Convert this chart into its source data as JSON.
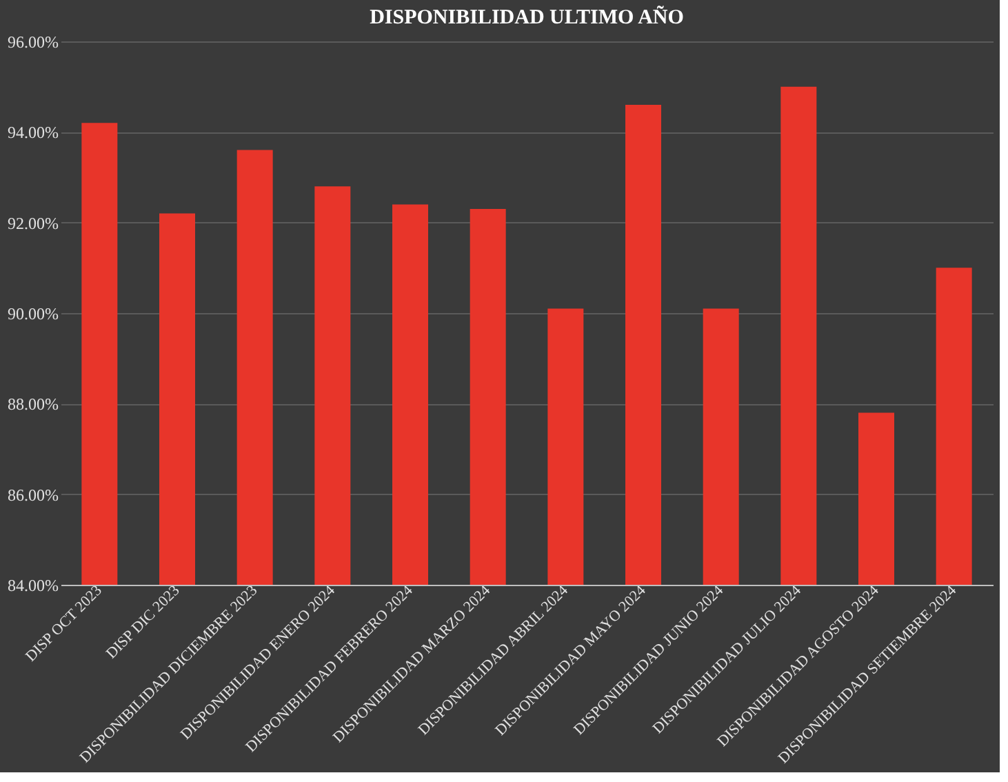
{
  "chart_data": {
    "type": "bar",
    "title": "DISPONIBILIDAD ULTIMO AÑO",
    "categories": [
      "DISP OCT 2023",
      "DISP DIC 2023",
      "DISPONIBILIDAD DICIEMBRE 2023",
      "DISPONIBILIDAD ENERO 2024",
      "DISPONIBILIDAD FEBRERO 2024",
      "DISPONIBILIDAD MARZO 2024",
      "DISPONIBILIDAD ABRIL 2024",
      "DISPONIBILIDAD MAYO 2024",
      "DISPONIBILIDAD JUNIO 2024",
      "DISPONIBILIDAD JULIO 2024",
      "DISPONIBILIDAD AGOSTO 2024",
      "DISPONIBILIDAD SETIEMBRE 2024"
    ],
    "values": [
      94.2,
      92.2,
      93.6,
      92.8,
      92.4,
      92.3,
      90.1,
      94.6,
      90.1,
      95.0,
      87.8,
      91.0
    ],
    "color": "#e8352a",
    "ylim": [
      84,
      96
    ],
    "yticks": [
      {
        "value": 84,
        "label": "84.00%"
      },
      {
        "value": 86,
        "label": "86.00%"
      },
      {
        "value": 88,
        "label": "88.00%"
      },
      {
        "value": 90,
        "label": "90.00%"
      },
      {
        "value": 92,
        "label": "92.00%"
      },
      {
        "value": 94,
        "label": "94.00%"
      },
      {
        "value": 96,
        "label": "96.00%"
      }
    ],
    "grid": "y"
  }
}
